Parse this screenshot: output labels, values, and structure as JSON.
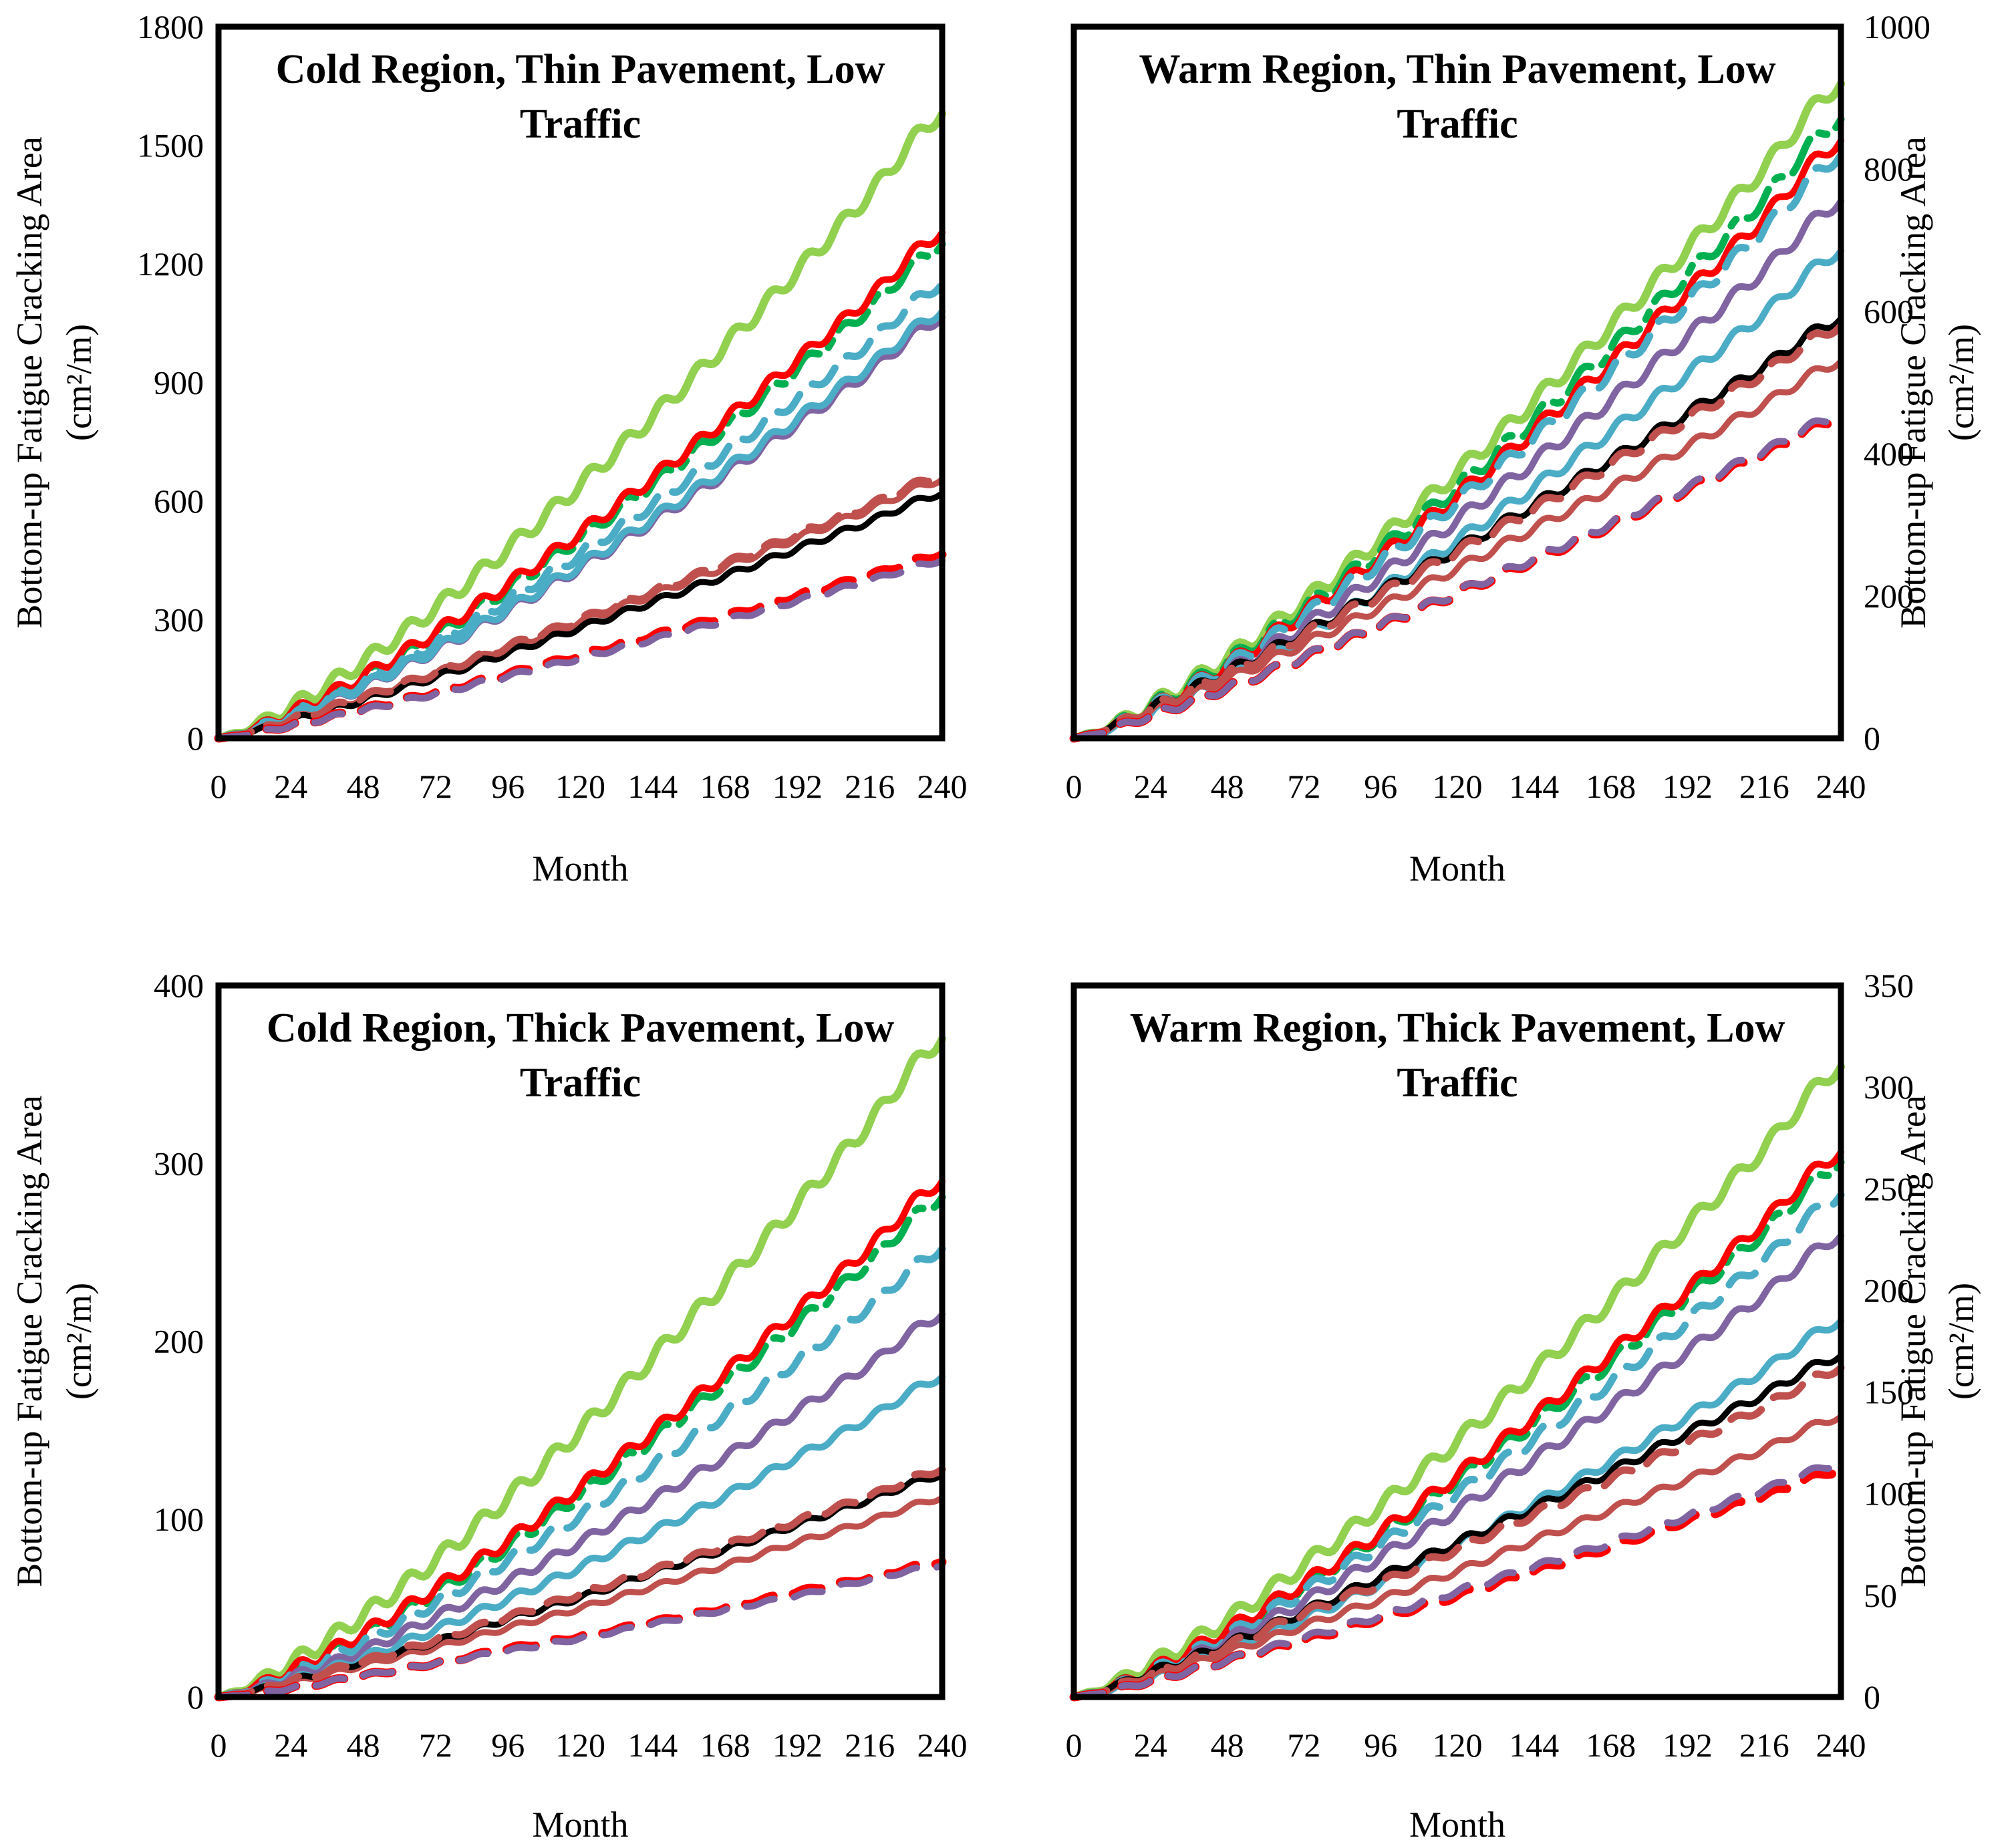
{
  "figure": {
    "xlabel": "Month",
    "x_step": 24,
    "x_max": 240,
    "x_ticks": [
      0,
      24,
      48,
      72,
      96,
      120,
      144,
      168,
      192,
      216,
      240
    ],
    "ylabel_line1": "Bottom-up Fatigue Cracking Area",
    "ylabel_line2": "(cm²/m)",
    "seasonal_period_months": 12,
    "palette": {
      "light_green": "#92D050",
      "red": "#FF0000",
      "dark_green": "#00B050",
      "teal": "#4BACC6",
      "purple": "#8064A2",
      "brown": "#C0504D",
      "black": "#000000"
    }
  },
  "chart_data": [
    {
      "id": "cold-thin-low",
      "type": "line",
      "title_lines": [
        "Cold Region, Thin Pavement, Low",
        "Traffic"
      ],
      "y_axis_side": "left",
      "ylim": [
        0,
        1800
      ],
      "y_ticks": [
        0,
        300,
        600,
        900,
        1200,
        1500,
        1800
      ],
      "grid": false,
      "legend": "none",
      "series": [
        {
          "name": "green-solid",
          "color": "#92D050",
          "style": "solid",
          "values": [
            0,
            79,
            194,
            330,
            480,
            642,
            814,
            994,
            1182,
            1378,
            1580
          ]
        },
        {
          "name": "darkgreen-dashdot",
          "color": "#00B050",
          "style": "dashdot",
          "values": [
            0,
            63,
            154,
            261,
            380,
            508,
            644,
            786,
            935,
            1090,
            1250
          ]
        },
        {
          "name": "red-solid",
          "color": "#FF0000",
          "style": "solid",
          "values": [
            0,
            64,
            157,
            268,
            389,
            520,
            659,
            805,
            957,
            1116,
            1280
          ]
        },
        {
          "name": "teal-dashed",
          "color": "#4BACC6",
          "style": "dashed",
          "values": [
            0,
            58,
            141,
            240,
            350,
            467,
            592,
            723,
            860,
            1003,
            1150
          ]
        },
        {
          "name": "purple-solid",
          "color": "#8064A2",
          "style": "solid",
          "values": [
            0,
            53,
            131,
            223,
            324,
            433,
            549,
            670,
            797,
            929,
            1065
          ]
        },
        {
          "name": "teal-solid",
          "color": "#4BACC6",
          "style": "solid",
          "values": [
            0,
            54,
            133,
            226,
            328,
            438,
            556,
            679,
            808,
            942,
            1080
          ]
        },
        {
          "name": "brown-solid",
          "color": "#C0504D",
          "style": "solid",
          "values": [
            0,
            46,
            103,
            164,
            229,
            295,
            364,
            434,
            507,
            580,
            655
          ]
        },
        {
          "name": "black-solid",
          "color": "#000000",
          "style": "solid",
          "values": [
            0,
            44,
            97,
            155,
            216,
            280,
            345,
            411,
            480,
            549,
            620
          ]
        },
        {
          "name": "brown-dashed",
          "color": "#C0504D",
          "style": "dashed",
          "values": [
            0,
            47,
            104,
            166,
            232,
            300,
            370,
            441,
            515,
            589,
            665
          ]
        },
        {
          "name": "red-dashed",
          "color": "#FF0000",
          "style": "dashed",
          "values": [
            0,
            33,
            73,
            116,
            162,
            210,
            259,
            308,
            360,
            412,
            465
          ]
        },
        {
          "name": "purple-dashed",
          "color": "#8064A2",
          "style": "dashed",
          "values": [
            0,
            32,
            71,
            113,
            157,
            203,
            250,
            298,
            348,
            399,
            450
          ]
        }
      ]
    },
    {
      "id": "warm-thin-low",
      "type": "line",
      "title_lines": [
        "Warm Region, Thin Pavement, Low",
        "Traffic"
      ],
      "y_axis_side": "right",
      "ylim": [
        0,
        1000
      ],
      "y_ticks": [
        0,
        200,
        400,
        600,
        800,
        1000
      ],
      "grid": false,
      "legend": "none",
      "series": [
        {
          "name": "green-solid",
          "color": "#92D050",
          "style": "solid",
          "values": [
            0,
            46,
            113,
            192,
            280,
            374,
            474,
            579,
            688,
            802,
            920
          ]
        },
        {
          "name": "darkgreen-dashdot",
          "color": "#00B050",
          "style": "dashdot",
          "values": [
            0,
            44,
            107,
            182,
            264,
            353,
            448,
            547,
            651,
            759,
            870
          ]
        },
        {
          "name": "red-solid",
          "color": "#FF0000",
          "style": "solid",
          "values": [
            0,
            42,
            103,
            176,
            255,
            341,
            433,
            528,
            628,
            732,
            840
          ]
        },
        {
          "name": "teal-dashed",
          "color": "#4BACC6",
          "style": "dashed",
          "values": [
            0,
            41,
            101,
            171,
            249,
            333,
            422,
            516,
            613,
            715,
            820
          ]
        },
        {
          "name": "purple-solid",
          "color": "#8064A2",
          "style": "solid",
          "values": [
            0,
            38,
            93,
            158,
            229,
            307,
            389,
            475,
            565,
            658,
            755
          ]
        },
        {
          "name": "teal-solid",
          "color": "#4BACC6",
          "style": "solid",
          "values": [
            0,
            34,
            84,
            143,
            208,
            278,
            353,
            431,
            512,
            597,
            685
          ]
        },
        {
          "name": "brown-solid",
          "color": "#C0504D",
          "style": "solid",
          "values": [
            0,
            38,
            83,
            133,
            185,
            239,
            295,
            351,
            410,
            470,
            530
          ]
        },
        {
          "name": "black-solid",
          "color": "#000000",
          "style": "solid",
          "values": [
            0,
            42,
            93,
            148,
            206,
            266,
            328,
            391,
            457,
            523,
            590
          ]
        },
        {
          "name": "brown-dashed",
          "color": "#C0504D",
          "style": "dashed",
          "values": [
            0,
            41,
            91,
            145,
            202,
            262,
            322,
            385,
            449,
            514,
            580
          ]
        },
        {
          "name": "red-dashed",
          "color": "#FF0000",
          "style": "dashed",
          "values": [
            0,
            32,
            71,
            113,
            158,
            204,
            251,
            300,
            350,
            400,
            452
          ]
        },
        {
          "name": "purple-dashed",
          "color": "#8064A2",
          "style": "dashed",
          "values": [
            0,
            32,
            71,
            114,
            159,
            205,
            253,
            302,
            352,
            403,
            455
          ]
        }
      ]
    },
    {
      "id": "cold-thick-low",
      "type": "line",
      "title_lines": [
        "Cold Region, Thick Pavement, Low",
        "Traffic"
      ],
      "y_axis_side": "left",
      "ylim": [
        0,
        400
      ],
      "y_ticks": [
        0,
        100,
        200,
        300,
        400
      ],
      "grid": false,
      "legend": "none",
      "series": [
        {
          "name": "green-solid",
          "color": "#92D050",
          "style": "solid",
          "values": [
            0,
            19,
            46,
            77,
            112,
            150,
            191,
            233,
            277,
            323,
            370
          ]
        },
        {
          "name": "darkgreen-dashdot",
          "color": "#00B050",
          "style": "dashdot",
          "values": [
            0,
            14,
            35,
            59,
            85,
            114,
            145,
            177,
            210,
            245,
            281
          ]
        },
        {
          "name": "red-solid",
          "color": "#FF0000",
          "style": "solid",
          "values": [
            0,
            15,
            36,
            61,
            88,
            118,
            149,
            182,
            217,
            253,
            290
          ]
        },
        {
          "name": "teal-dashed",
          "color": "#4BACC6",
          "style": "dashed",
          "values": [
            0,
            13,
            31,
            53,
            77,
            102,
            130,
            159,
            189,
            220,
            252
          ]
        },
        {
          "name": "purple-solid",
          "color": "#8064A2",
          "style": "solid",
          "values": [
            0,
            11,
            26,
            45,
            65,
            87,
            111,
            135,
            161,
            187,
            215
          ]
        },
        {
          "name": "teal-solid",
          "color": "#4BACC6",
          "style": "solid",
          "values": [
            0,
            9,
            22,
            38,
            55,
            73,
            93,
            113,
            135,
            157,
            180
          ]
        },
        {
          "name": "brown-solid",
          "color": "#C0504D",
          "style": "solid",
          "values": [
            0,
            8,
            18,
            28,
            39,
            50,
            62,
            74,
            87,
            99,
            112
          ]
        },
        {
          "name": "black-solid",
          "color": "#000000",
          "style": "solid",
          "values": [
            0,
            9,
            20,
            31,
            44,
            56,
            70,
            83,
            97,
            111,
            125
          ]
        },
        {
          "name": "brown-dashed",
          "color": "#C0504D",
          "style": "dashed",
          "values": [
            0,
            9,
            20,
            32,
            45,
            58,
            71,
            85,
            99,
            113,
            128
          ]
        },
        {
          "name": "red-dashed",
          "color": "#FF0000",
          "style": "dashed",
          "values": [
            0,
            5,
            12,
            19,
            27,
            34,
            42,
            50,
            59,
            67,
            76
          ]
        },
        {
          "name": "purple-dashed",
          "color": "#8064A2",
          "style": "dashed",
          "values": [
            0,
            5,
            12,
            19,
            26,
            33,
            41,
            49,
            57,
            66,
            74
          ]
        }
      ]
    },
    {
      "id": "warm-thick-low",
      "type": "line",
      "title_lines": [
        "Warm Region, Thick Pavement, Low",
        "Traffic"
      ],
      "y_axis_side": "right",
      "ylim": [
        0,
        350
      ],
      "y_ticks": [
        0,
        50,
        100,
        150,
        200,
        250,
        300,
        350
      ],
      "grid": false,
      "legend": "none",
      "series": [
        {
          "name": "green-solid",
          "color": "#92D050",
          "style": "solid",
          "values": [
            0,
            16,
            38,
            65,
            94,
            126,
            160,
            195,
            232,
            270,
            310
          ]
        },
        {
          "name": "darkgreen-dashdot",
          "color": "#00B050",
          "style": "dashdot",
          "values": [
            0,
            13,
            32,
            55,
            80,
            107,
            135,
            165,
            197,
            229,
            263
          ]
        },
        {
          "name": "red-solid",
          "color": "#FF0000",
          "style": "solid",
          "values": [
            0,
            13,
            33,
            56,
            81,
            109,
            138,
            169,
            200,
            234,
            268
          ]
        },
        {
          "name": "teal-dashed",
          "color": "#4BACC6",
          "style": "dashed",
          "values": [
            0,
            12,
            30,
            52,
            75,
            100,
            127,
            155,
            185,
            215,
            247
          ]
        },
        {
          "name": "purple-solid",
          "color": "#8064A2",
          "style": "solid",
          "values": [
            0,
            11,
            28,
            47,
            69,
            92,
            117,
            143,
            170,
            198,
            227
          ]
        },
        {
          "name": "teal-solid",
          "color": "#4BACC6",
          "style": "solid",
          "values": [
            0,
            9,
            23,
            39,
            56,
            75,
            95,
            116,
            138,
            161,
            185
          ]
        },
        {
          "name": "brown-solid",
          "color": "#C0504D",
          "style": "solid",
          "values": [
            0,
            10,
            22,
            35,
            48,
            62,
            77,
            92,
            107,
            122,
            138
          ]
        },
        {
          "name": "black-solid",
          "color": "#000000",
          "style": "solid",
          "values": [
            0,
            12,
            26,
            42,
            59,
            76,
            93,
            111,
            130,
            149,
            168
          ]
        },
        {
          "name": "brown-dashed",
          "color": "#C0504D",
          "style": "dashed",
          "values": [
            0,
            11,
            25,
            41,
            56,
            73,
            90,
            107,
            125,
            143,
            162
          ]
        },
        {
          "name": "red-dashed",
          "color": "#FF0000",
          "style": "dashed",
          "values": [
            0,
            8,
            18,
            28,
            39,
            50,
            62,
            74,
            87,
            99,
            112
          ]
        },
        {
          "name": "purple-dashed",
          "color": "#8064A2",
          "style": "dashed",
          "values": [
            0,
            8,
            18,
            29,
            40,
            52,
            64,
            76,
            89,
            102,
            115
          ]
        }
      ]
    }
  ]
}
